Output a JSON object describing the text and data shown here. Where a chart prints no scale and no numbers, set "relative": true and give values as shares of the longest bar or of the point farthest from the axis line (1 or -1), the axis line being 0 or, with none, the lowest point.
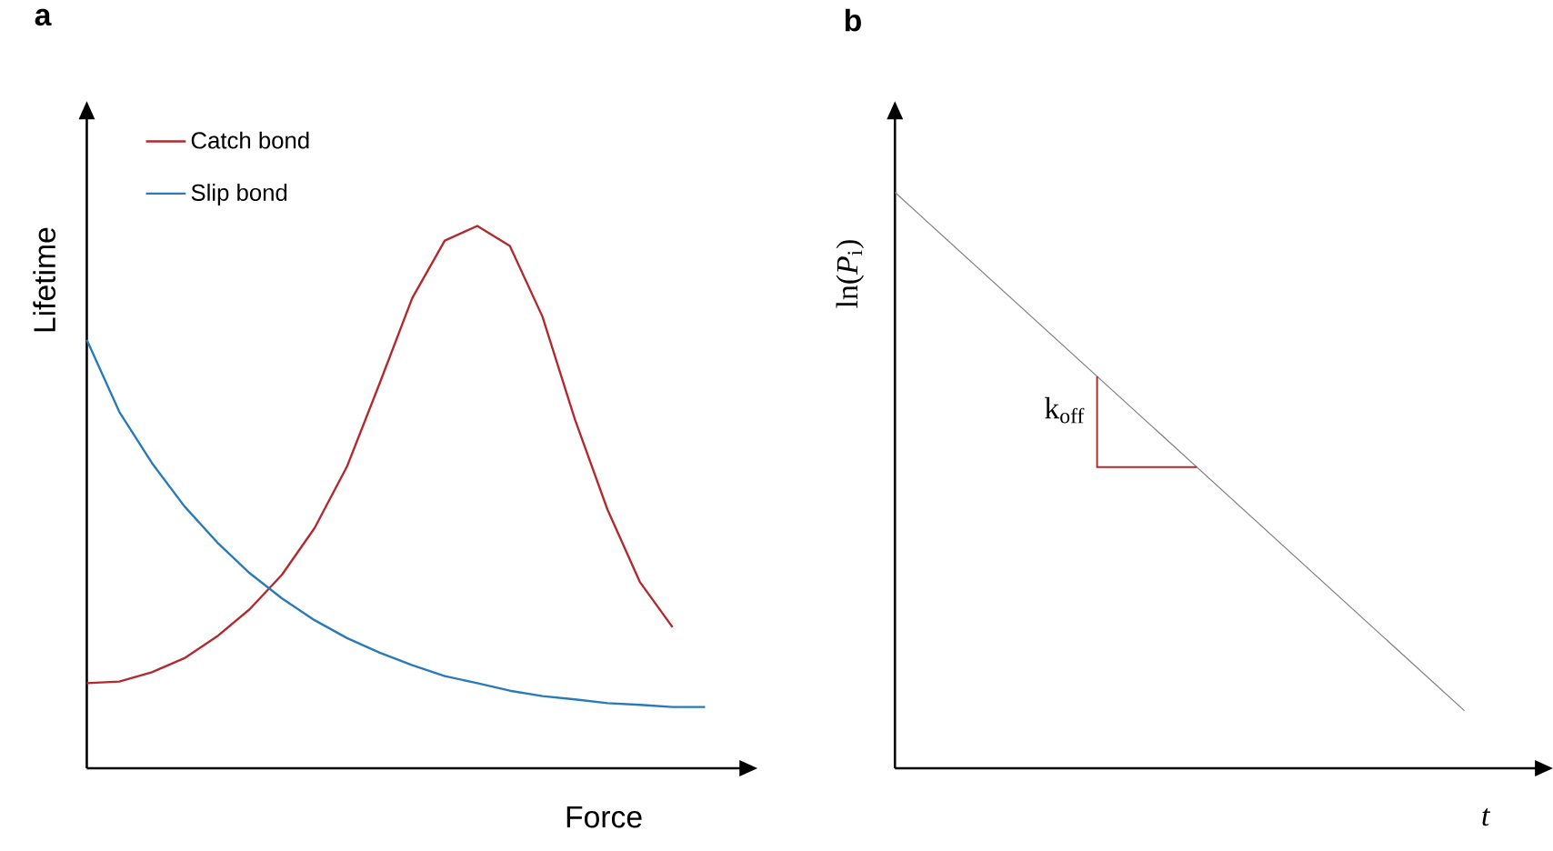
{
  "chart_data": [
    {
      "type": "line",
      "title": "a",
      "xlabel": "Force",
      "ylabel": "Lifetime",
      "relative": true,
      "legend": "top left",
      "categories": [
        null,
        null,
        null,
        null,
        null,
        null,
        null,
        null,
        null,
        null,
        null,
        null,
        null,
        null,
        null,
        null,
        null,
        null,
        null,
        null
      ],
      "series": [
        {
          "name": "Catch bond",
          "color": "#b22a2e",
          "values": [
            0.157,
            0.16,
            0.177,
            0.203,
            0.243,
            0.293,
            0.357,
            0.443,
            0.557,
            0.71,
            0.867,
            0.973,
            1,
            0.963,
            0.833,
            0.643,
            0.477,
            0.343,
            0.26,
            null
          ]
        },
        {
          "name": "Slip bond",
          "color": "#2a7ab9",
          "values": [
            0.79,
            0.657,
            0.563,
            0.483,
            0.417,
            0.36,
            0.313,
            0.273,
            0.24,
            0.213,
            0.19,
            0.17,
            0.157,
            0.143,
            0.133,
            0.127,
            0.12,
            0.117,
            0.113,
            0.113
          ]
        }
      ]
    },
    {
      "type": "line",
      "title": "b",
      "xlabel": "t",
      "ylabel": "ln(*P*$_{i}$)",
      "relative": true,
      "categories": [
        null,
        null
      ],
      "series": [
        {
          "color": "#7f7f7f",
          "values": [
            1,
            0.1
          ]
        }
      ],
      "annotations": [
        "k$_{off}$"
      ]
    }
  ]
}
